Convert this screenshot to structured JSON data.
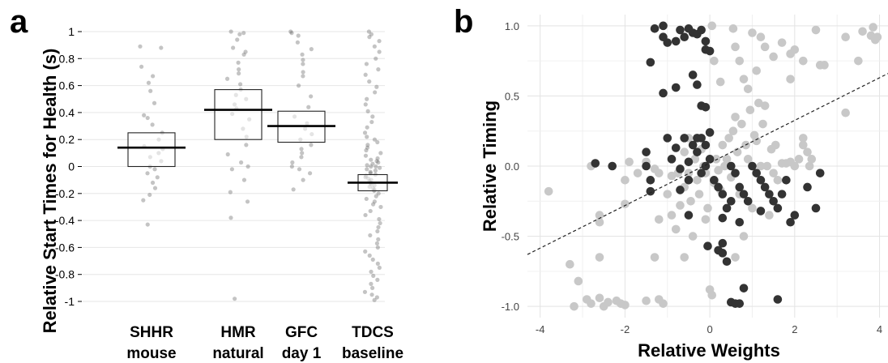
{
  "figure": {
    "panel_a_label": "a",
    "panel_b_label": "b"
  },
  "chart_data": [
    {
      "type": "box",
      "panel": "a",
      "ylabel": "Relative Start Times for Health (s)",
      "ylim": [
        -1,
        1
      ],
      "yticks": [
        1,
        0.8,
        0.6,
        0.4,
        0.2,
        0,
        -0.2,
        -0.4,
        -0.6,
        -0.8,
        -1
      ],
      "ytick_labels": [
        "1",
        "0.8",
        "0.6",
        "0.4",
        "0.2",
        "0",
        "-0.2",
        "-0.4",
        "-0.6",
        "-0.8",
        "-1"
      ],
      "grid": true,
      "categories": [
        {
          "line1": "SHHR",
          "line2": "mouse",
          "median": 0.14,
          "q1": 0.0,
          "q3": 0.25,
          "points": [
            0.89,
            0.88,
            0.74,
            0.67,
            0.62,
            0.56,
            0.47,
            0.38,
            0.36,
            0.31,
            0.25,
            0.2,
            0.15,
            0.13,
            0.1,
            0.07,
            0.04,
            0.0,
            -0.02,
            -0.05,
            -0.08,
            -0.12,
            -0.16,
            -0.21,
            -0.25,
            -0.43
          ]
        },
        {
          "line1": "HMR",
          "line2": "natural",
          "median": 0.42,
          "q1": 0.2,
          "q3": 0.57,
          "points": [
            1.0,
            0.99,
            0.98,
            0.94,
            0.88,
            0.85,
            0.83,
            0.77,
            0.72,
            0.69,
            0.65,
            0.61,
            0.57,
            0.53,
            0.5,
            0.46,
            0.43,
            0.39,
            0.35,
            0.28,
            0.22,
            0.16,
            0.09,
            0.03,
            0.0,
            -0.02,
            -0.1,
            -0.19,
            -0.26,
            -0.38,
            -0.98
          ]
        },
        {
          "line1": "GFC",
          "line2": "day 1",
          "median": 0.3,
          "q1": 0.18,
          "q3": 0.41,
          "points": [
            1.0,
            0.99,
            0.97,
            0.92,
            0.87,
            0.83,
            0.79,
            0.76,
            0.7,
            0.67,
            0.6,
            0.52,
            0.44,
            0.37,
            0.32,
            0.28,
            0.24,
            0.2,
            0.16,
            0.13,
            0.1,
            0.07,
            0.03,
            0.0,
            -0.02,
            -0.05,
            -0.1,
            -0.17
          ]
        },
        {
          "line1": "TDCS",
          "line2": "baseline",
          "median": -0.12,
          "q1": -0.18,
          "q3": -0.06,
          "points": [
            1.0,
            0.98,
            0.96,
            0.93,
            0.89,
            0.85,
            0.8,
            0.76,
            0.72,
            0.68,
            0.63,
            0.59,
            0.55,
            0.5,
            0.46,
            0.41,
            0.37,
            0.33,
            0.29,
            0.25,
            0.22,
            0.2,
            0.18,
            0.16,
            0.14,
            0.12,
            0.1,
            0.08,
            0.06,
            0.05,
            0.04,
            0.03,
            0.02,
            0.01,
            0.0,
            0.0,
            -0.01,
            -0.02,
            -0.03,
            -0.04,
            -0.05,
            -0.06,
            -0.07,
            -0.08,
            -0.09,
            -0.1,
            -0.11,
            -0.12,
            -0.13,
            -0.14,
            -0.15,
            -0.16,
            -0.17,
            -0.18,
            -0.2,
            -0.22,
            -0.24,
            -0.26,
            -0.28,
            -0.3,
            -0.33,
            -0.36,
            -0.39,
            -0.42,
            -0.45,
            -0.48,
            -0.51,
            -0.54,
            -0.57,
            -0.6,
            -0.63,
            -0.66,
            -0.69,
            -0.72,
            -0.75,
            -0.78,
            -0.81,
            -0.84,
            -0.87,
            -0.9,
            -0.93,
            -0.95,
            -0.97,
            -0.99
          ]
        }
      ]
    },
    {
      "type": "scatter",
      "panel": "b",
      "xlabel": "Relative Weights",
      "ylabel": "Relative Timing",
      "xlim": [
        -4.3,
        4.2
      ],
      "ylim": [
        -1.08,
        1.08
      ],
      "xticks": [
        -4,
        -2,
        0,
        2,
        4
      ],
      "xtick_labels": [
        "-4",
        "-2",
        "0",
        "2",
        "4"
      ],
      "yticks": [
        1.0,
        0.5,
        0.0,
        -0.5,
        -1.0
      ],
      "ytick_labels": [
        "1.0",
        "0.5",
        "0.0",
        "-0.5",
        "-1.0"
      ],
      "grid": true,
      "trend_line": {
        "x": [
          -4.3,
          4.2
        ],
        "y": [
          -0.63,
          0.66
        ],
        "style": "dashed"
      },
      "series": [
        {
          "color": "#c8c8c8",
          "points": [
            [
              -3.8,
              -0.18
            ],
            [
              -3.3,
              -0.7
            ],
            [
              -3.1,
              -0.82
            ],
            [
              -3.2,
              -1.0
            ],
            [
              -2.9,
              -0.95
            ],
            [
              -2.8,
              -0.98
            ],
            [
              -2.6,
              -0.94
            ],
            [
              -2.5,
              -1.0
            ],
            [
              -2.4,
              -0.97
            ],
            [
              -2.2,
              -0.96
            ],
            [
              -2.1,
              -0.98
            ],
            [
              -2.0,
              -0.99
            ],
            [
              -1.5,
              -0.96
            ],
            [
              -1.2,
              -0.95
            ],
            [
              -1.1,
              -0.98
            ],
            [
              -2.6,
              -0.35
            ],
            [
              -2.6,
              -0.4
            ],
            [
              -2.6,
              -0.65
            ],
            [
              -2.0,
              -0.1
            ],
            [
              -2.0,
              -0.27
            ],
            [
              -1.7,
              -0.05
            ],
            [
              -1.5,
              0.03
            ],
            [
              -1.3,
              -0.02
            ],
            [
              -1.3,
              -0.65
            ],
            [
              -1.2,
              -0.38
            ],
            [
              -1.2,
              -0.05
            ],
            [
              -1.0,
              -0.2
            ],
            [
              -0.9,
              -0.35
            ],
            [
              -0.9,
              -0.07
            ],
            [
              -0.8,
              -0.45
            ],
            [
              -0.75,
              -0.05
            ],
            [
              -0.7,
              -0.28
            ],
            [
              -0.6,
              0.1
            ],
            [
              -0.6,
              -0.15
            ],
            [
              -0.5,
              0.2
            ],
            [
              -0.5,
              -0.05
            ],
            [
              -0.45,
              -0.25
            ],
            [
              -0.4,
              -0.5
            ],
            [
              -0.35,
              0.05
            ],
            [
              -0.3,
              -0.1
            ],
            [
              -0.25,
              -0.2
            ],
            [
              -0.2,
              0.12
            ],
            [
              -0.15,
              0.0
            ],
            [
              -0.1,
              -0.05
            ],
            [
              -0.05,
              -0.3
            ],
            [
              0.0,
              -0.88
            ],
            [
              0.05,
              -0.92
            ],
            [
              0.1,
              -0.12
            ],
            [
              0.15,
              0.05
            ],
            [
              0.2,
              -0.03
            ],
            [
              0.25,
              -0.17
            ],
            [
              0.3,
              0.15
            ],
            [
              0.35,
              0.0
            ],
            [
              0.4,
              0.05
            ],
            [
              0.45,
              0.2
            ],
            [
              0.5,
              -0.08
            ],
            [
              0.55,
              0.25
            ],
            [
              0.6,
              0.35
            ],
            [
              0.65,
              0.1
            ],
            [
              0.7,
              -0.2
            ],
            [
              0.75,
              0.3
            ],
            [
              0.8,
              -0.5
            ],
            [
              0.85,
              0.15
            ],
            [
              0.9,
              0.05
            ],
            [
              0.95,
              0.4
            ],
            [
              1.0,
              -0.3
            ],
            [
              1.05,
              0.22
            ],
            [
              1.1,
              0.18
            ],
            [
              1.15,
              0.45
            ],
            [
              1.2,
              0.0
            ],
            [
              1.25,
              0.3
            ],
            [
              1.3,
              0.43
            ],
            [
              1.35,
              0.0
            ],
            [
              1.4,
              -0.35
            ],
            [
              1.45,
              0.12
            ],
            [
              1.5,
              -0.05
            ],
            [
              1.55,
              0.15
            ],
            [
              1.6,
              -0.1
            ],
            [
              1.7,
              0.02
            ],
            [
              1.8,
              0.02
            ],
            [
              1.9,
              0.03
            ],
            [
              2.0,
              0.0
            ],
            [
              2.1,
              0.05
            ],
            [
              2.2,
              0.15
            ],
            [
              2.2,
              0.2
            ],
            [
              2.3,
              0.1
            ],
            [
              2.35,
              0.0
            ],
            [
              2.4,
              0.05
            ],
            [
              0.55,
              0.98
            ],
            [
              0.6,
              0.85
            ],
            [
              0.7,
              0.75
            ],
            [
              0.8,
              0.62
            ],
            [
              0.9,
              0.55
            ],
            [
              1.0,
              0.95
            ],
            [
              1.1,
              0.68
            ],
            [
              1.2,
              0.92
            ],
            [
              1.3,
              0.85
            ],
            [
              1.5,
              0.78
            ],
            [
              1.7,
              0.88
            ],
            [
              1.9,
              0.62
            ],
            [
              2.0,
              0.83
            ],
            [
              2.2,
              0.75
            ],
            [
              2.5,
              0.97
            ],
            [
              2.6,
              0.72
            ],
            [
              2.7,
              0.72
            ],
            [
              3.2,
              0.92
            ],
            [
              3.5,
              0.75
            ],
            [
              3.6,
              0.96
            ],
            [
              3.8,
              0.93
            ],
            [
              3.85,
              0.99
            ],
            [
              3.9,
              0.9
            ],
            [
              3.95,
              0.92
            ],
            [
              0.05,
              1.0
            ],
            [
              0.1,
              0.75
            ],
            [
              0.25,
              0.6
            ],
            [
              1.9,
              0.8
            ],
            [
              3.2,
              0.38
            ],
            [
              0.6,
              -0.65
            ],
            [
              -1.9,
              0.03
            ],
            [
              -0.1,
              -0.38
            ],
            [
              -0.6,
              -0.65
            ],
            [
              -2.8,
              0.0
            ]
          ]
        },
        {
          "color": "#333333",
          "points": [
            [
              -1.3,
              0.98
            ],
            [
              -1.1,
              1.0
            ],
            [
              -1.1,
              0.92
            ],
            [
              -1.0,
              0.88
            ],
            [
              -0.8,
              0.89
            ],
            [
              -0.7,
              0.97
            ],
            [
              -0.6,
              0.92
            ],
            [
              -0.5,
              0.98
            ],
            [
              -0.4,
              0.95
            ],
            [
              -0.3,
              0.94
            ],
            [
              -0.2,
              0.97
            ],
            [
              -0.1,
              0.83
            ],
            [
              0.0,
              0.82
            ],
            [
              -0.1,
              0.89
            ],
            [
              -1.4,
              0.74
            ],
            [
              -1.1,
              0.52
            ],
            [
              -0.8,
              0.56
            ],
            [
              -0.4,
              0.65
            ],
            [
              -0.3,
              0.58
            ],
            [
              -0.2,
              0.43
            ],
            [
              -0.1,
              0.42
            ],
            [
              0.0,
              0.24
            ],
            [
              -2.7,
              0.02
            ],
            [
              -2.3,
              0.0
            ],
            [
              -1.5,
              0.0
            ],
            [
              -1.4,
              -0.1
            ],
            [
              -1.5,
              0.1
            ],
            [
              -0.9,
              0.05
            ],
            [
              -0.7,
              -0.02
            ],
            [
              -0.5,
              0.03
            ],
            [
              -0.3,
              0.1
            ],
            [
              -0.2,
              -0.05
            ],
            [
              -0.1,
              0.0
            ],
            [
              0.0,
              0.05
            ],
            [
              0.1,
              -0.1
            ],
            [
              0.2,
              -0.15
            ],
            [
              0.3,
              -0.2
            ],
            [
              0.4,
              -0.3
            ],
            [
              0.5,
              -0.25
            ],
            [
              0.6,
              -0.05
            ],
            [
              0.7,
              -0.15
            ],
            [
              0.8,
              -0.2
            ],
            [
              0.9,
              -0.25
            ],
            [
              1.0,
              0.0
            ],
            [
              1.1,
              -0.05
            ],
            [
              1.2,
              -0.1
            ],
            [
              1.3,
              -0.15
            ],
            [
              1.4,
              -0.2
            ],
            [
              1.5,
              -0.25
            ],
            [
              1.6,
              -0.3
            ],
            [
              1.7,
              -0.2
            ],
            [
              1.8,
              -0.1
            ],
            [
              1.9,
              -0.4
            ],
            [
              2.0,
              -0.35
            ],
            [
              2.3,
              -0.15
            ],
            [
              2.5,
              -0.3
            ],
            [
              2.6,
              -0.05
            ],
            [
              -0.5,
              -0.35
            ],
            [
              -0.6,
              0.2
            ],
            [
              -0.4,
              0.15
            ],
            [
              -0.3,
              0.2
            ],
            [
              -0.2,
              0.2
            ],
            [
              -0.1,
              0.15
            ],
            [
              -1.4,
              -0.18
            ],
            [
              0.2,
              -0.6
            ],
            [
              0.3,
              -0.62
            ],
            [
              0.4,
              -0.68
            ],
            [
              0.5,
              -0.97
            ],
            [
              0.6,
              -0.98
            ],
            [
              0.7,
              -0.98
            ],
            [
              0.8,
              -0.87
            ],
            [
              1.6,
              -0.95
            ],
            [
              -1.0,
              0.2
            ],
            [
              -0.8,
              0.13
            ],
            [
              -0.7,
              -0.17
            ],
            [
              -0.5,
              -0.1
            ],
            [
              0.3,
              -0.37
            ],
            [
              0.5,
              0.0
            ],
            [
              0.7,
              -0.4
            ],
            [
              1.2,
              -0.32
            ],
            [
              -0.05,
              -0.57
            ],
            [
              0.3,
              -0.55
            ]
          ]
        }
      ]
    }
  ]
}
